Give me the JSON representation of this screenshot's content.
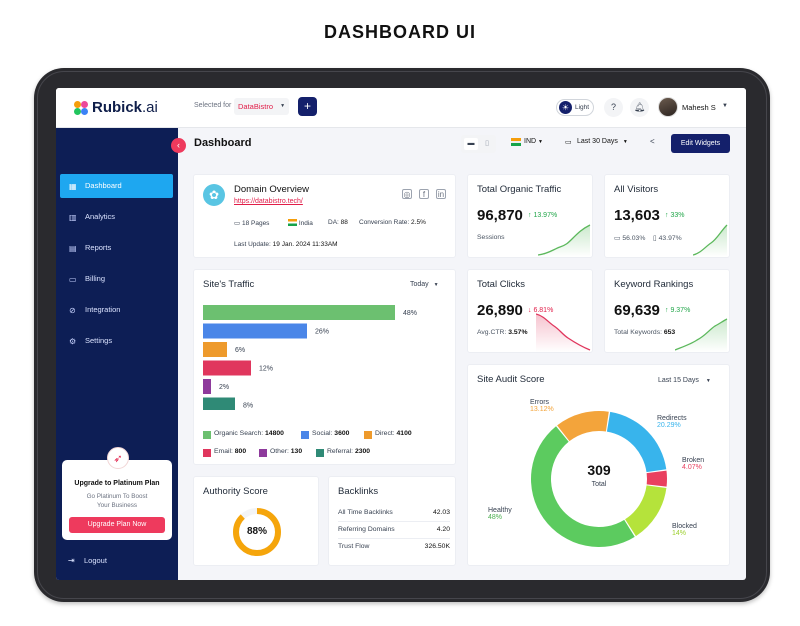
{
  "page_heading": "DASHBOARD UI",
  "topbar": {
    "brand": "Rubick",
    "brand_suffix": ".ai",
    "selected_for": "Selected for",
    "site": "DataBistro",
    "add": "+",
    "theme": "Light",
    "help": "?",
    "user": "Mahesh S"
  },
  "sidebar": {
    "items": [
      {
        "label": "Dashboard",
        "icon": "grid-icon"
      },
      {
        "label": "Analytics",
        "icon": "analytics-icon"
      },
      {
        "label": "Reports",
        "icon": "reports-icon"
      },
      {
        "label": "Billing",
        "icon": "billing-icon"
      },
      {
        "label": "Integration",
        "icon": "integration-icon"
      },
      {
        "label": "Settings",
        "icon": "gear-icon"
      }
    ],
    "upgrade": {
      "title": "Upgrade to Platinum Plan",
      "subtitle": "Go Platinum To Boost Your Business",
      "button": "Upgrade Plan Now"
    },
    "logout": "Logout"
  },
  "header": {
    "title": "Dashboard",
    "country": "IND",
    "range": "Last 30 Days",
    "edit_widgets": "Edit Widgets"
  },
  "domain_overview": {
    "title": "Domain Overview",
    "url": "https://databistro.tech/",
    "pages": "18 Pages",
    "country": "India",
    "da_label": "DA:",
    "da_value": "88",
    "conversion_label": "Conversion Rate:",
    "conversion_value": "2.5%",
    "last_update_label": "Last Update:",
    "last_update_value": "19 Jan. 2024  11:33AM"
  },
  "organic_traffic": {
    "title": "Total Organic Traffic",
    "value": "96,870",
    "delta": "13.97%",
    "sub": "Sessions"
  },
  "visitors": {
    "title": "All Visitors",
    "value": "13,603",
    "delta": "33%",
    "desktop": "56.03%",
    "mobile": "43.97%"
  },
  "clicks": {
    "title": "Total Clicks",
    "value": "26,890",
    "delta": "6.81%",
    "ctr_label": "Avg.CTR:",
    "ctr_value": "3.57%"
  },
  "keywords": {
    "title": "Keyword Rankings",
    "value": "69,639",
    "delta": "9.37%",
    "sub_label": "Total Keywords:",
    "sub_value": "653"
  },
  "site_traffic": {
    "title": "Site's Traffic",
    "range": "Today",
    "legend": [
      {
        "label": "Organic Search:",
        "value": "14800",
        "color": "#6cc070"
      },
      {
        "label": "Social:",
        "value": "3600",
        "color": "#4a86e8"
      },
      {
        "label": "Direct:",
        "value": "4100",
        "color": "#ee9a2c"
      },
      {
        "label": "Email:",
        "value": "800",
        "color": "#e0365d"
      },
      {
        "label": "Other:",
        "value": "130",
        "color": "#8e3a9c"
      },
      {
        "label": "Referral:",
        "value": "2300",
        "color": "#2f8a76"
      }
    ]
  },
  "chart_data": {
    "type": "bar",
    "orientation": "horizontal",
    "categories": [
      "Organic Search",
      "Social",
      "Direct",
      "Email",
      "Other",
      "Referral"
    ],
    "values": [
      48,
      26,
      6,
      12,
      2,
      8
    ],
    "labels": [
      "48%",
      "26%",
      "6%",
      "12%",
      "2%",
      "8%"
    ],
    "colors": [
      "#6cc070",
      "#4a86e8",
      "#ee9a2c",
      "#e0365d",
      "#8e3a9c",
      "#2f8a76"
    ],
    "xlim": [
      0,
      60
    ]
  },
  "authority": {
    "title": "Authority Score",
    "value": "88%",
    "percent": 88
  },
  "backlinks": {
    "title": "Backlinks",
    "rows": [
      {
        "label": "All Time Backlinks",
        "value": "42.03"
      },
      {
        "label": "Referring Domains",
        "value": "4.20"
      },
      {
        "label": "Trust Flow",
        "value": "326.50K"
      }
    ]
  },
  "site_audit": {
    "title": "Site Audit Score",
    "range": "Last 15 Days",
    "total": "309",
    "total_label": "Total",
    "segments": [
      {
        "name": "Healthy",
        "pct": "48%",
        "value": 48,
        "color": "#5ccb5f"
      },
      {
        "name": "Errors",
        "pct": "13.12%",
        "value": 13.12,
        "color": "#f3a43b"
      },
      {
        "name": "Redirects",
        "pct": "20.29%",
        "value": 20.29,
        "color": "#38b4ec"
      },
      {
        "name": "Broken",
        "pct": "4.07%",
        "value": 4.07,
        "color": "#e9405f"
      },
      {
        "name": "Blocked",
        "pct": "14%",
        "value": 14,
        "color": "#b5e33b"
      }
    ]
  }
}
